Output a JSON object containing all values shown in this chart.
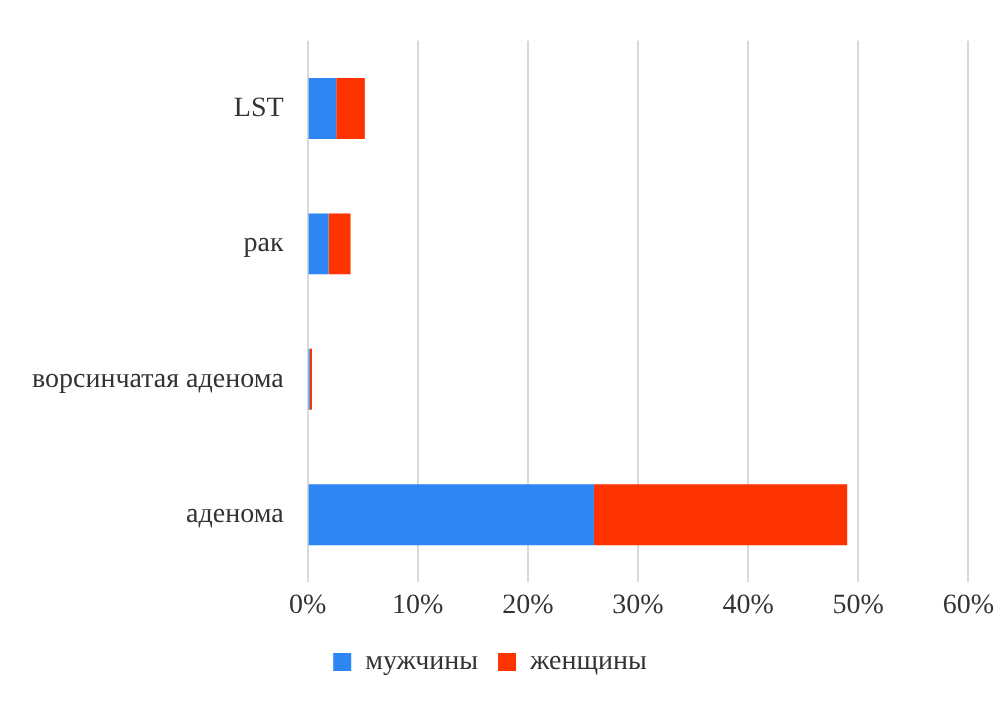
{
  "chart_data": {
    "type": "bar",
    "orientation": "horizontal",
    "stacked": true,
    "categories": [
      "LST",
      "рак",
      "ворсинчатая аденома",
      "аденома"
    ],
    "series": [
      {
        "name": "мужчины",
        "color": "#2e86f5",
        "values": [
          2.6,
          1.9,
          0.2,
          26
        ]
      },
      {
        "name": "женщины",
        "color": "#ff3300",
        "values": [
          2.6,
          2.0,
          0.2,
          23
        ]
      }
    ],
    "xlim": [
      0,
      60
    ],
    "xticks": [
      {
        "value": 0,
        "label": "0%"
      },
      {
        "value": 10,
        "label": "10%"
      },
      {
        "value": 20,
        "label": "20%"
      },
      {
        "value": 30,
        "label": "30%"
      },
      {
        "value": 40,
        "label": "40%"
      },
      {
        "value": 50,
        "label": "50%"
      },
      {
        "value": 60,
        "label": "60%"
      }
    ],
    "grid": "x",
    "legend": "bottom"
  }
}
